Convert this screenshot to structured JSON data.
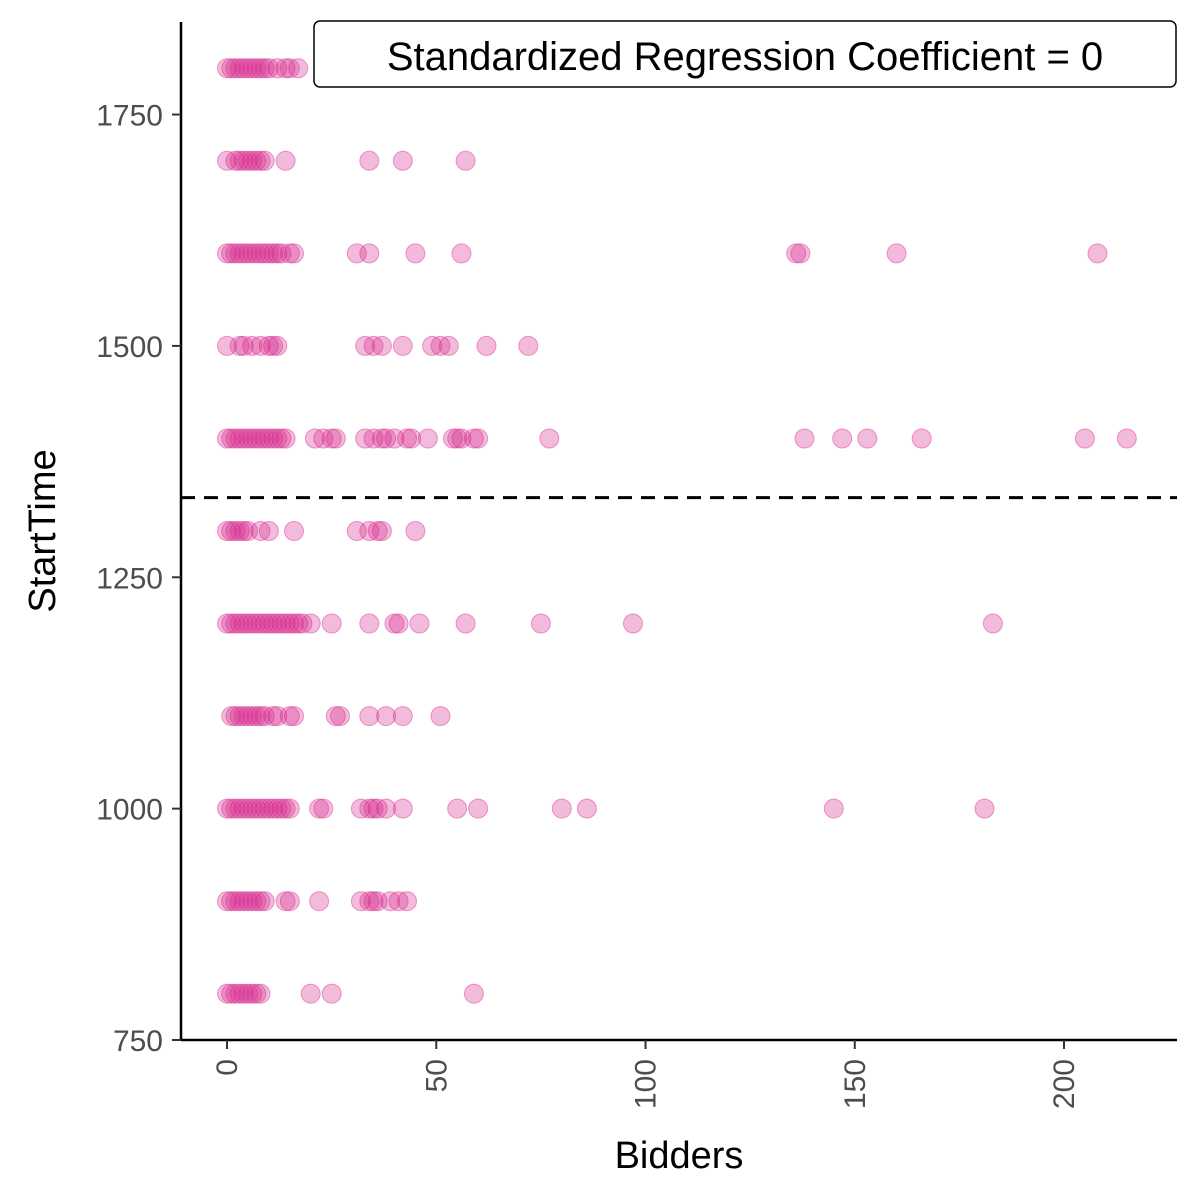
{
  "chart_data": {
    "type": "scatter",
    "xlabel": "Bidders",
    "ylabel": "StartTime",
    "xlim": [
      -11,
      227
    ],
    "ylim": [
      750,
      1850
    ],
    "x_ticks": [
      0,
      50,
      100,
      150,
      200
    ],
    "y_ticks": [
      750,
      1000,
      1250,
      1500,
      1750
    ],
    "x_tick_labels": [
      "0",
      "50",
      "100",
      "150",
      "200"
    ],
    "y_tick_labels": [
      "750",
      "1000",
      "1250",
      "1500",
      "1750"
    ],
    "grid": false,
    "point_color": "#D62A8F",
    "point_opacity": 0.32,
    "reference_line": {
      "y": 1336,
      "style": "dashed",
      "color": "#000000"
    },
    "annotation": "Standardized Regression Coefficient = 0",
    "annotation_position": "top-right",
    "points": [
      {
        "x": 0,
        "y": 1800
      },
      {
        "x": 1,
        "y": 1800
      },
      {
        "x": 2,
        "y": 1800
      },
      {
        "x": 3,
        "y": 1800
      },
      {
        "x": 4,
        "y": 1800
      },
      {
        "x": 5,
        "y": 1800
      },
      {
        "x": 6,
        "y": 1800
      },
      {
        "x": 7,
        "y": 1800
      },
      {
        "x": 8,
        "y": 1800
      },
      {
        "x": 9,
        "y": 1800
      },
      {
        "x": 10,
        "y": 1800
      },
      {
        "x": 12,
        "y": 1800
      },
      {
        "x": 14,
        "y": 1800
      },
      {
        "x": 15,
        "y": 1800
      },
      {
        "x": 17,
        "y": 1800
      },
      {
        "x": 0,
        "y": 1700
      },
      {
        "x": 2,
        "y": 1700
      },
      {
        "x": 3,
        "y": 1700
      },
      {
        "x": 4,
        "y": 1700
      },
      {
        "x": 5,
        "y": 1700
      },
      {
        "x": 6,
        "y": 1700
      },
      {
        "x": 7,
        "y": 1700
      },
      {
        "x": 8,
        "y": 1700
      },
      {
        "x": 9,
        "y": 1700
      },
      {
        "x": 14,
        "y": 1700
      },
      {
        "x": 34,
        "y": 1700
      },
      {
        "x": 42,
        "y": 1700
      },
      {
        "x": 57,
        "y": 1700
      },
      {
        "x": 0,
        "y": 1600
      },
      {
        "x": 1,
        "y": 1600
      },
      {
        "x": 2,
        "y": 1600
      },
      {
        "x": 3,
        "y": 1600
      },
      {
        "x": 4,
        "y": 1600
      },
      {
        "x": 5,
        "y": 1600
      },
      {
        "x": 6,
        "y": 1600
      },
      {
        "x": 7,
        "y": 1600
      },
      {
        "x": 8,
        "y": 1600
      },
      {
        "x": 9,
        "y": 1600
      },
      {
        "x": 10,
        "y": 1600
      },
      {
        "x": 11,
        "y": 1600
      },
      {
        "x": 12,
        "y": 1600
      },
      {
        "x": 13,
        "y": 1600
      },
      {
        "x": 15,
        "y": 1600
      },
      {
        "x": 16,
        "y": 1600
      },
      {
        "x": 31,
        "y": 1600
      },
      {
        "x": 34,
        "y": 1600
      },
      {
        "x": 45,
        "y": 1600
      },
      {
        "x": 56,
        "y": 1600
      },
      {
        "x": 136,
        "y": 1600
      },
      {
        "x": 137,
        "y": 1600
      },
      {
        "x": 160,
        "y": 1600
      },
      {
        "x": 208,
        "y": 1600
      },
      {
        "x": 0,
        "y": 1500
      },
      {
        "x": 3,
        "y": 1500
      },
      {
        "x": 4,
        "y": 1500
      },
      {
        "x": 6,
        "y": 1500
      },
      {
        "x": 8,
        "y": 1500
      },
      {
        "x": 10,
        "y": 1500
      },
      {
        "x": 11,
        "y": 1500
      },
      {
        "x": 12,
        "y": 1500
      },
      {
        "x": 33,
        "y": 1500
      },
      {
        "x": 35,
        "y": 1500
      },
      {
        "x": 37,
        "y": 1500
      },
      {
        "x": 42,
        "y": 1500
      },
      {
        "x": 49,
        "y": 1500
      },
      {
        "x": 51,
        "y": 1500
      },
      {
        "x": 53,
        "y": 1500
      },
      {
        "x": 62,
        "y": 1500
      },
      {
        "x": 72,
        "y": 1500
      },
      {
        "x": 0,
        "y": 1400
      },
      {
        "x": 1,
        "y": 1400
      },
      {
        "x": 2,
        "y": 1400
      },
      {
        "x": 3,
        "y": 1400
      },
      {
        "x": 4,
        "y": 1400
      },
      {
        "x": 5,
        "y": 1400
      },
      {
        "x": 6,
        "y": 1400
      },
      {
        "x": 7,
        "y": 1400
      },
      {
        "x": 8,
        "y": 1400
      },
      {
        "x": 9,
        "y": 1400
      },
      {
        "x": 10,
        "y": 1400
      },
      {
        "x": 11,
        "y": 1400
      },
      {
        "x": 12,
        "y": 1400
      },
      {
        "x": 13,
        "y": 1400
      },
      {
        "x": 14,
        "y": 1400
      },
      {
        "x": 21,
        "y": 1400
      },
      {
        "x": 23,
        "y": 1400
      },
      {
        "x": 25,
        "y": 1400
      },
      {
        "x": 26,
        "y": 1400
      },
      {
        "x": 33,
        "y": 1400
      },
      {
        "x": 35,
        "y": 1400
      },
      {
        "x": 37,
        "y": 1400
      },
      {
        "x": 38,
        "y": 1400
      },
      {
        "x": 40,
        "y": 1400
      },
      {
        "x": 43,
        "y": 1400
      },
      {
        "x": 44,
        "y": 1400
      },
      {
        "x": 48,
        "y": 1400
      },
      {
        "x": 54,
        "y": 1400
      },
      {
        "x": 55,
        "y": 1400
      },
      {
        "x": 56,
        "y": 1400
      },
      {
        "x": 59,
        "y": 1400
      },
      {
        "x": 60,
        "y": 1400
      },
      {
        "x": 77,
        "y": 1400
      },
      {
        "x": 138,
        "y": 1400
      },
      {
        "x": 147,
        "y": 1400
      },
      {
        "x": 153,
        "y": 1400
      },
      {
        "x": 166,
        "y": 1400
      },
      {
        "x": 205,
        "y": 1400
      },
      {
        "x": 215,
        "y": 1400
      },
      {
        "x": 0,
        "y": 1300
      },
      {
        "x": 1,
        "y": 1300
      },
      {
        "x": 2,
        "y": 1300
      },
      {
        "x": 3,
        "y": 1300
      },
      {
        "x": 4,
        "y": 1300
      },
      {
        "x": 5,
        "y": 1300
      },
      {
        "x": 8,
        "y": 1300
      },
      {
        "x": 10,
        "y": 1300
      },
      {
        "x": 16,
        "y": 1300
      },
      {
        "x": 31,
        "y": 1300
      },
      {
        "x": 34,
        "y": 1300
      },
      {
        "x": 36,
        "y": 1300
      },
      {
        "x": 37,
        "y": 1300
      },
      {
        "x": 45,
        "y": 1300
      },
      {
        "x": 0,
        "y": 1200
      },
      {
        "x": 1,
        "y": 1200
      },
      {
        "x": 2,
        "y": 1200
      },
      {
        "x": 3,
        "y": 1200
      },
      {
        "x": 4,
        "y": 1200
      },
      {
        "x": 5,
        "y": 1200
      },
      {
        "x": 6,
        "y": 1200
      },
      {
        "x": 7,
        "y": 1200
      },
      {
        "x": 8,
        "y": 1200
      },
      {
        "x": 9,
        "y": 1200
      },
      {
        "x": 10,
        "y": 1200
      },
      {
        "x": 11,
        "y": 1200
      },
      {
        "x": 12,
        "y": 1200
      },
      {
        "x": 13,
        "y": 1200
      },
      {
        "x": 14,
        "y": 1200
      },
      {
        "x": 15,
        "y": 1200
      },
      {
        "x": 16,
        "y": 1200
      },
      {
        "x": 17,
        "y": 1200
      },
      {
        "x": 18,
        "y": 1200
      },
      {
        "x": 20,
        "y": 1200
      },
      {
        "x": 25,
        "y": 1200
      },
      {
        "x": 34,
        "y": 1200
      },
      {
        "x": 40,
        "y": 1200
      },
      {
        "x": 41,
        "y": 1200
      },
      {
        "x": 46,
        "y": 1200
      },
      {
        "x": 57,
        "y": 1200
      },
      {
        "x": 75,
        "y": 1200
      },
      {
        "x": 97,
        "y": 1200
      },
      {
        "x": 183,
        "y": 1200
      },
      {
        "x": 1,
        "y": 1100
      },
      {
        "x": 2,
        "y": 1100
      },
      {
        "x": 3,
        "y": 1100
      },
      {
        "x": 4,
        "y": 1100
      },
      {
        "x": 5,
        "y": 1100
      },
      {
        "x": 6,
        "y": 1100
      },
      {
        "x": 7,
        "y": 1100
      },
      {
        "x": 8,
        "y": 1100
      },
      {
        "x": 9,
        "y": 1100
      },
      {
        "x": 11,
        "y": 1100
      },
      {
        "x": 12,
        "y": 1100
      },
      {
        "x": 15,
        "y": 1100
      },
      {
        "x": 16,
        "y": 1100
      },
      {
        "x": 26,
        "y": 1100
      },
      {
        "x": 27,
        "y": 1100
      },
      {
        "x": 34,
        "y": 1100
      },
      {
        "x": 38,
        "y": 1100
      },
      {
        "x": 42,
        "y": 1100
      },
      {
        "x": 51,
        "y": 1100
      },
      {
        "x": 0,
        "y": 1000
      },
      {
        "x": 1,
        "y": 1000
      },
      {
        "x": 2,
        "y": 1000
      },
      {
        "x": 3,
        "y": 1000
      },
      {
        "x": 4,
        "y": 1000
      },
      {
        "x": 5,
        "y": 1000
      },
      {
        "x": 6,
        "y": 1000
      },
      {
        "x": 7,
        "y": 1000
      },
      {
        "x": 8,
        "y": 1000
      },
      {
        "x": 9,
        "y": 1000
      },
      {
        "x": 10,
        "y": 1000
      },
      {
        "x": 11,
        "y": 1000
      },
      {
        "x": 12,
        "y": 1000
      },
      {
        "x": 13,
        "y": 1000
      },
      {
        "x": 14,
        "y": 1000
      },
      {
        "x": 15,
        "y": 1000
      },
      {
        "x": 22,
        "y": 1000
      },
      {
        "x": 23,
        "y": 1000
      },
      {
        "x": 32,
        "y": 1000
      },
      {
        "x": 34,
        "y": 1000
      },
      {
        "x": 35,
        "y": 1000
      },
      {
        "x": 36,
        "y": 1000
      },
      {
        "x": 38,
        "y": 1000
      },
      {
        "x": 42,
        "y": 1000
      },
      {
        "x": 55,
        "y": 1000
      },
      {
        "x": 60,
        "y": 1000
      },
      {
        "x": 80,
        "y": 1000
      },
      {
        "x": 86,
        "y": 1000
      },
      {
        "x": 145,
        "y": 1000
      },
      {
        "x": 181,
        "y": 1000
      },
      {
        "x": 0,
        "y": 900
      },
      {
        "x": 1,
        "y": 900
      },
      {
        "x": 2,
        "y": 900
      },
      {
        "x": 3,
        "y": 900
      },
      {
        "x": 4,
        "y": 900
      },
      {
        "x": 5,
        "y": 900
      },
      {
        "x": 6,
        "y": 900
      },
      {
        "x": 7,
        "y": 900
      },
      {
        "x": 8,
        "y": 900
      },
      {
        "x": 9,
        "y": 900
      },
      {
        "x": 14,
        "y": 900
      },
      {
        "x": 15,
        "y": 900
      },
      {
        "x": 22,
        "y": 900
      },
      {
        "x": 32,
        "y": 900
      },
      {
        "x": 34,
        "y": 900
      },
      {
        "x": 35,
        "y": 900
      },
      {
        "x": 36,
        "y": 900
      },
      {
        "x": 39,
        "y": 900
      },
      {
        "x": 41,
        "y": 900
      },
      {
        "x": 43,
        "y": 900
      },
      {
        "x": 0,
        "y": 800
      },
      {
        "x": 1,
        "y": 800
      },
      {
        "x": 2,
        "y": 800
      },
      {
        "x": 3,
        "y": 800
      },
      {
        "x": 4,
        "y": 800
      },
      {
        "x": 5,
        "y": 800
      },
      {
        "x": 6,
        "y": 800
      },
      {
        "x": 7,
        "y": 800
      },
      {
        "x": 8,
        "y": 800
      },
      {
        "x": 20,
        "y": 800
      },
      {
        "x": 25,
        "y": 800
      },
      {
        "x": 59,
        "y": 800
      }
    ]
  }
}
